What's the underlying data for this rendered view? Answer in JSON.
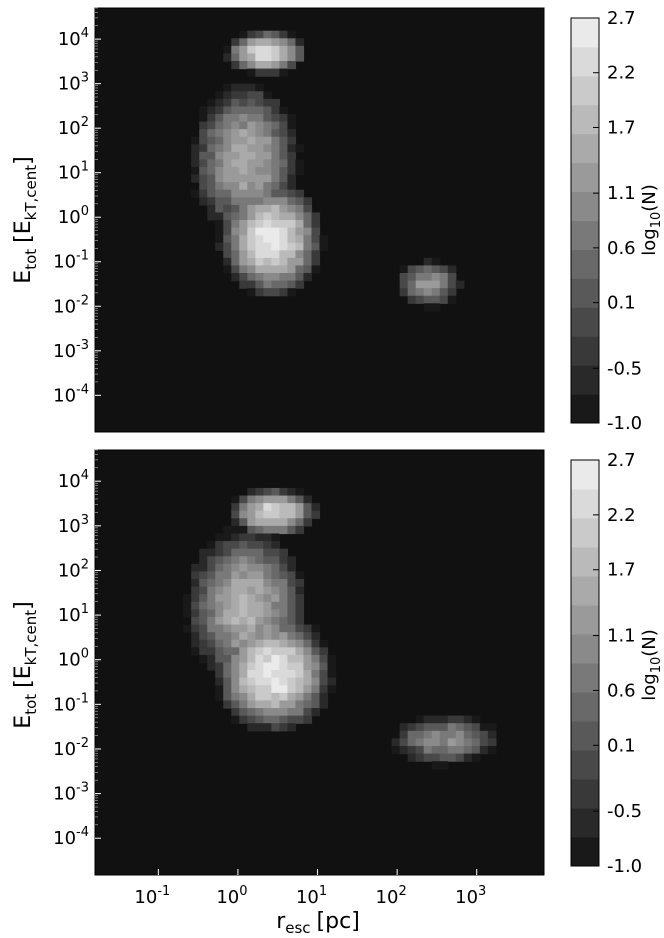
{
  "chart_data": [
    {
      "type": "heatmap",
      "panel": "top",
      "ylabel": "E_tot [E_kT,cent]",
      "x_scale": "log",
      "y_scale": "log",
      "xlim": [
        0.016,
        7000
      ],
      "ylim": [
        1.5e-05,
        50000
      ],
      "y_ticks": [
        "10^4",
        "10^3",
        "10^2",
        "10^1",
        "10^0",
        "10^-1",
        "10^-2",
        "10^-3",
        "10^-4"
      ],
      "colorbar": {
        "label": "log10(N)",
        "ticks": [
          "2.7",
          "2.2",
          "1.7",
          "1.1",
          "0.6",
          "0.1",
          "-0.5",
          "-1.0"
        ],
        "range": [
          -1.0,
          2.7
        ],
        "colormap": "grayscale"
      },
      "blobs": [
        {
          "x_log": 0.35,
          "y_log": 3.7,
          "sx": 0.35,
          "sy": 0.35,
          "peak": 2.4
        },
        {
          "x_log": 0.42,
          "y_log": -0.5,
          "sx": 0.45,
          "sy": 0.9,
          "peak": 2.5
        },
        {
          "x_log": 0.1,
          "y_log": 1.3,
          "sx": 0.55,
          "sy": 1.4,
          "peak": 1.5
        },
        {
          "x_log": 2.4,
          "y_log": -1.5,
          "sx": 0.35,
          "sy": 0.45,
          "peak": 1.2
        }
      ]
    },
    {
      "type": "heatmap",
      "panel": "bottom",
      "xlabel": "r_esc [pc]",
      "ylabel": "E_tot [E_kT,cent]",
      "x_scale": "log",
      "y_scale": "log",
      "xlim": [
        0.016,
        7000
      ],
      "ylim": [
        1.5e-05,
        50000
      ],
      "x_ticks": [
        "10^-1",
        "10^0",
        "10^1",
        "10^2",
        "10^3"
      ],
      "y_ticks": [
        "10^4",
        "10^3",
        "10^2",
        "10^1",
        "10^0",
        "10^-1",
        "10^-2",
        "10^-3",
        "10^-4"
      ],
      "colorbar": {
        "label": "log10(N)",
        "ticks": [
          "2.7",
          "2.2",
          "1.7",
          "1.1",
          "0.6",
          "0.1",
          "-0.5",
          "-1.0"
        ],
        "range": [
          -1.0,
          2.7
        ],
        "colormap": "grayscale"
      },
      "blobs": [
        {
          "x_log": 0.45,
          "y_log": 3.3,
          "sx": 0.4,
          "sy": 0.4,
          "peak": 2.2
        },
        {
          "x_log": 0.45,
          "y_log": -0.3,
          "sx": 0.5,
          "sy": 0.9,
          "peak": 2.6
        },
        {
          "x_log": 0.1,
          "y_log": 1.2,
          "sx": 0.6,
          "sy": 1.4,
          "peak": 1.6
        },
        {
          "x_log": 2.6,
          "y_log": -1.8,
          "sx": 0.6,
          "sy": 0.5,
          "peak": 1.0
        }
      ]
    }
  ],
  "text": {
    "top_ylabel_main": "E",
    "top_ylabel_sub": "tot",
    "top_ylabel_bracket_main": "[E",
    "top_ylabel_bracket_sub": "kT,cent",
    "top_ylabel_close": "]",
    "bot_ylabel_main": "E",
    "bot_ylabel_sub": "tot",
    "bot_ylabel_bracket_main": "[E",
    "bot_ylabel_bracket_sub": "kT,cent",
    "bot_ylabel_close": "]",
    "xlabel_main": "r",
    "xlabel_sub": "esc",
    "xlabel_unit": "[pc]",
    "cbar_main": "log",
    "cbar_sub": "10",
    "cbar_rest": "(N)"
  }
}
